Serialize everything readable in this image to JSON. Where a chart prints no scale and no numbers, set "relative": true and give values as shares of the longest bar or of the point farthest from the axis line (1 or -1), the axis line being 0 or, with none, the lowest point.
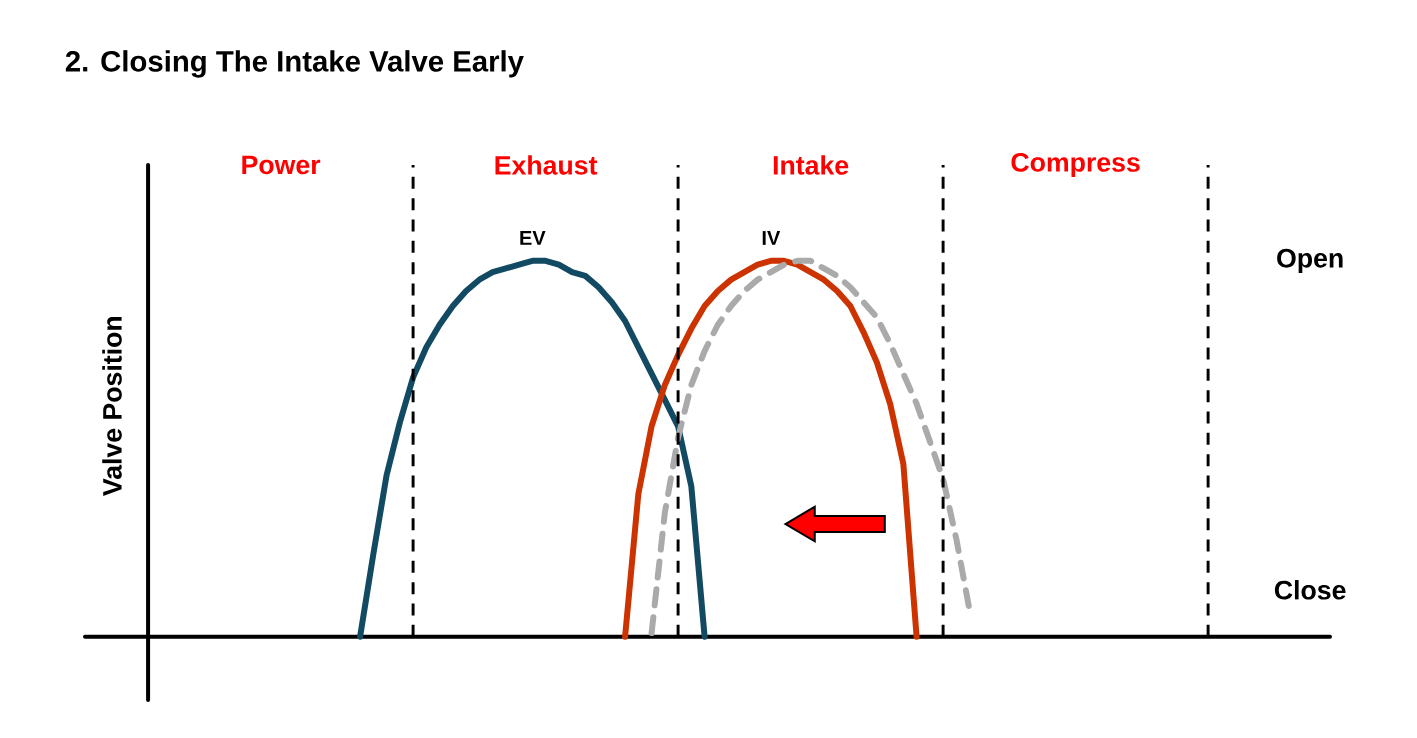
{
  "chart_data": {
    "type": "line",
    "relative": true,
    "title": "2. Closing The Intake Valve Early",
    "ylabel": "Valve Position",
    "grid": "x",
    "categories": [
      null,
      null,
      null,
      null,
      null,
      null,
      null,
      null,
      null,
      null,
      null,
      null,
      null,
      null,
      null,
      null,
      null,
      null,
      null,
      null,
      null,
      null,
      null,
      null,
      null,
      null,
      null,
      null,
      null,
      null,
      null,
      null,
      null,
      null,
      null,
      null,
      null,
      null,
      null,
      null,
      null,
      null,
      null,
      null,
      null,
      null,
      null,
      null,
      null,
      null,
      null,
      null,
      null,
      null,
      null,
      null,
      null,
      null,
      null,
      null,
      null,
      null,
      null,
      null,
      null,
      null,
      null,
      null,
      null,
      null,
      null,
      null,
      null,
      null,
      null,
      null,
      null,
      null,
      null,
      null,
      null
    ],
    "series": [
      {
        "name": "EV",
        "color": "#134a63",
        "values": [
          null,
          null,
          null,
          null,
          null,
          null,
          null,
          null,
          null,
          null,
          null,
          null,
          null,
          null,
          null,
          null,
          0,
          0.22,
          0.43,
          0.57,
          0.69,
          0.77,
          0.83,
          0.88,
          0.92,
          0.95,
          0.97,
          0.98,
          0.99,
          1,
          1,
          0.99,
          0.97,
          0.96,
          0.93,
          0.89,
          0.84,
          0.77,
          0.7,
          0.63,
          0.56,
          0.4,
          0,
          null,
          null,
          null,
          null,
          null,
          null,
          null,
          null,
          null,
          null,
          null,
          null,
          null,
          null,
          null,
          null,
          null,
          null,
          null,
          null,
          null,
          null,
          null,
          null,
          null,
          null,
          null,
          null,
          null,
          null,
          null,
          null,
          null,
          null,
          null,
          null,
          null,
          null
        ]
      },
      {
        "name": "IV",
        "color": "#cc3300",
        "values": [
          null,
          null,
          null,
          null,
          null,
          null,
          null,
          null,
          null,
          null,
          null,
          null,
          null,
          null,
          null,
          null,
          null,
          null,
          null,
          null,
          null,
          null,
          null,
          null,
          null,
          null,
          null,
          null,
          null,
          null,
          null,
          null,
          null,
          null,
          null,
          null,
          0,
          0.38,
          0.56,
          0.67,
          0.75,
          0.82,
          0.88,
          0.92,
          0.95,
          0.97,
          0.99,
          1,
          1,
          0.99,
          0.97,
          0.95,
          0.92,
          0.88,
          0.81,
          0.73,
          0.62,
          0.46,
          0,
          null,
          null,
          null,
          null,
          null,
          null,
          null,
          null,
          null,
          null,
          null,
          null,
          null,
          null,
          null,
          null,
          null,
          null,
          null,
          null,
          null,
          null
        ]
      },
      {
        "color": "#aaaaaa",
        "line_style": "dashed",
        "values": [
          null,
          null,
          null,
          null,
          null,
          null,
          null,
          null,
          null,
          null,
          null,
          null,
          null,
          null,
          null,
          null,
          null,
          null,
          null,
          null,
          null,
          null,
          null,
          null,
          null,
          null,
          null,
          null,
          null,
          null,
          null,
          null,
          null,
          null,
          null,
          null,
          null,
          null,
          0.01,
          0.33,
          0.53,
          0.67,
          0.76,
          0.83,
          0.88,
          0.92,
          0.95,
          0.97,
          0.99,
          1,
          1,
          0.98,
          0.96,
          0.93,
          0.89,
          0.85,
          0.78,
          0.7,
          0.62,
          0.52,
          0.42,
          0.26,
          0.07,
          null,
          null,
          null,
          null,
          null,
          null,
          null,
          null,
          null,
          null,
          null,
          null,
          null,
          null,
          null,
          null,
          null,
          null
        ]
      }
    ],
    "annotations": [
      "Power",
      "Exhaust",
      "Intake",
      "Compress",
      "Open",
      "Close"
    ]
  }
}
